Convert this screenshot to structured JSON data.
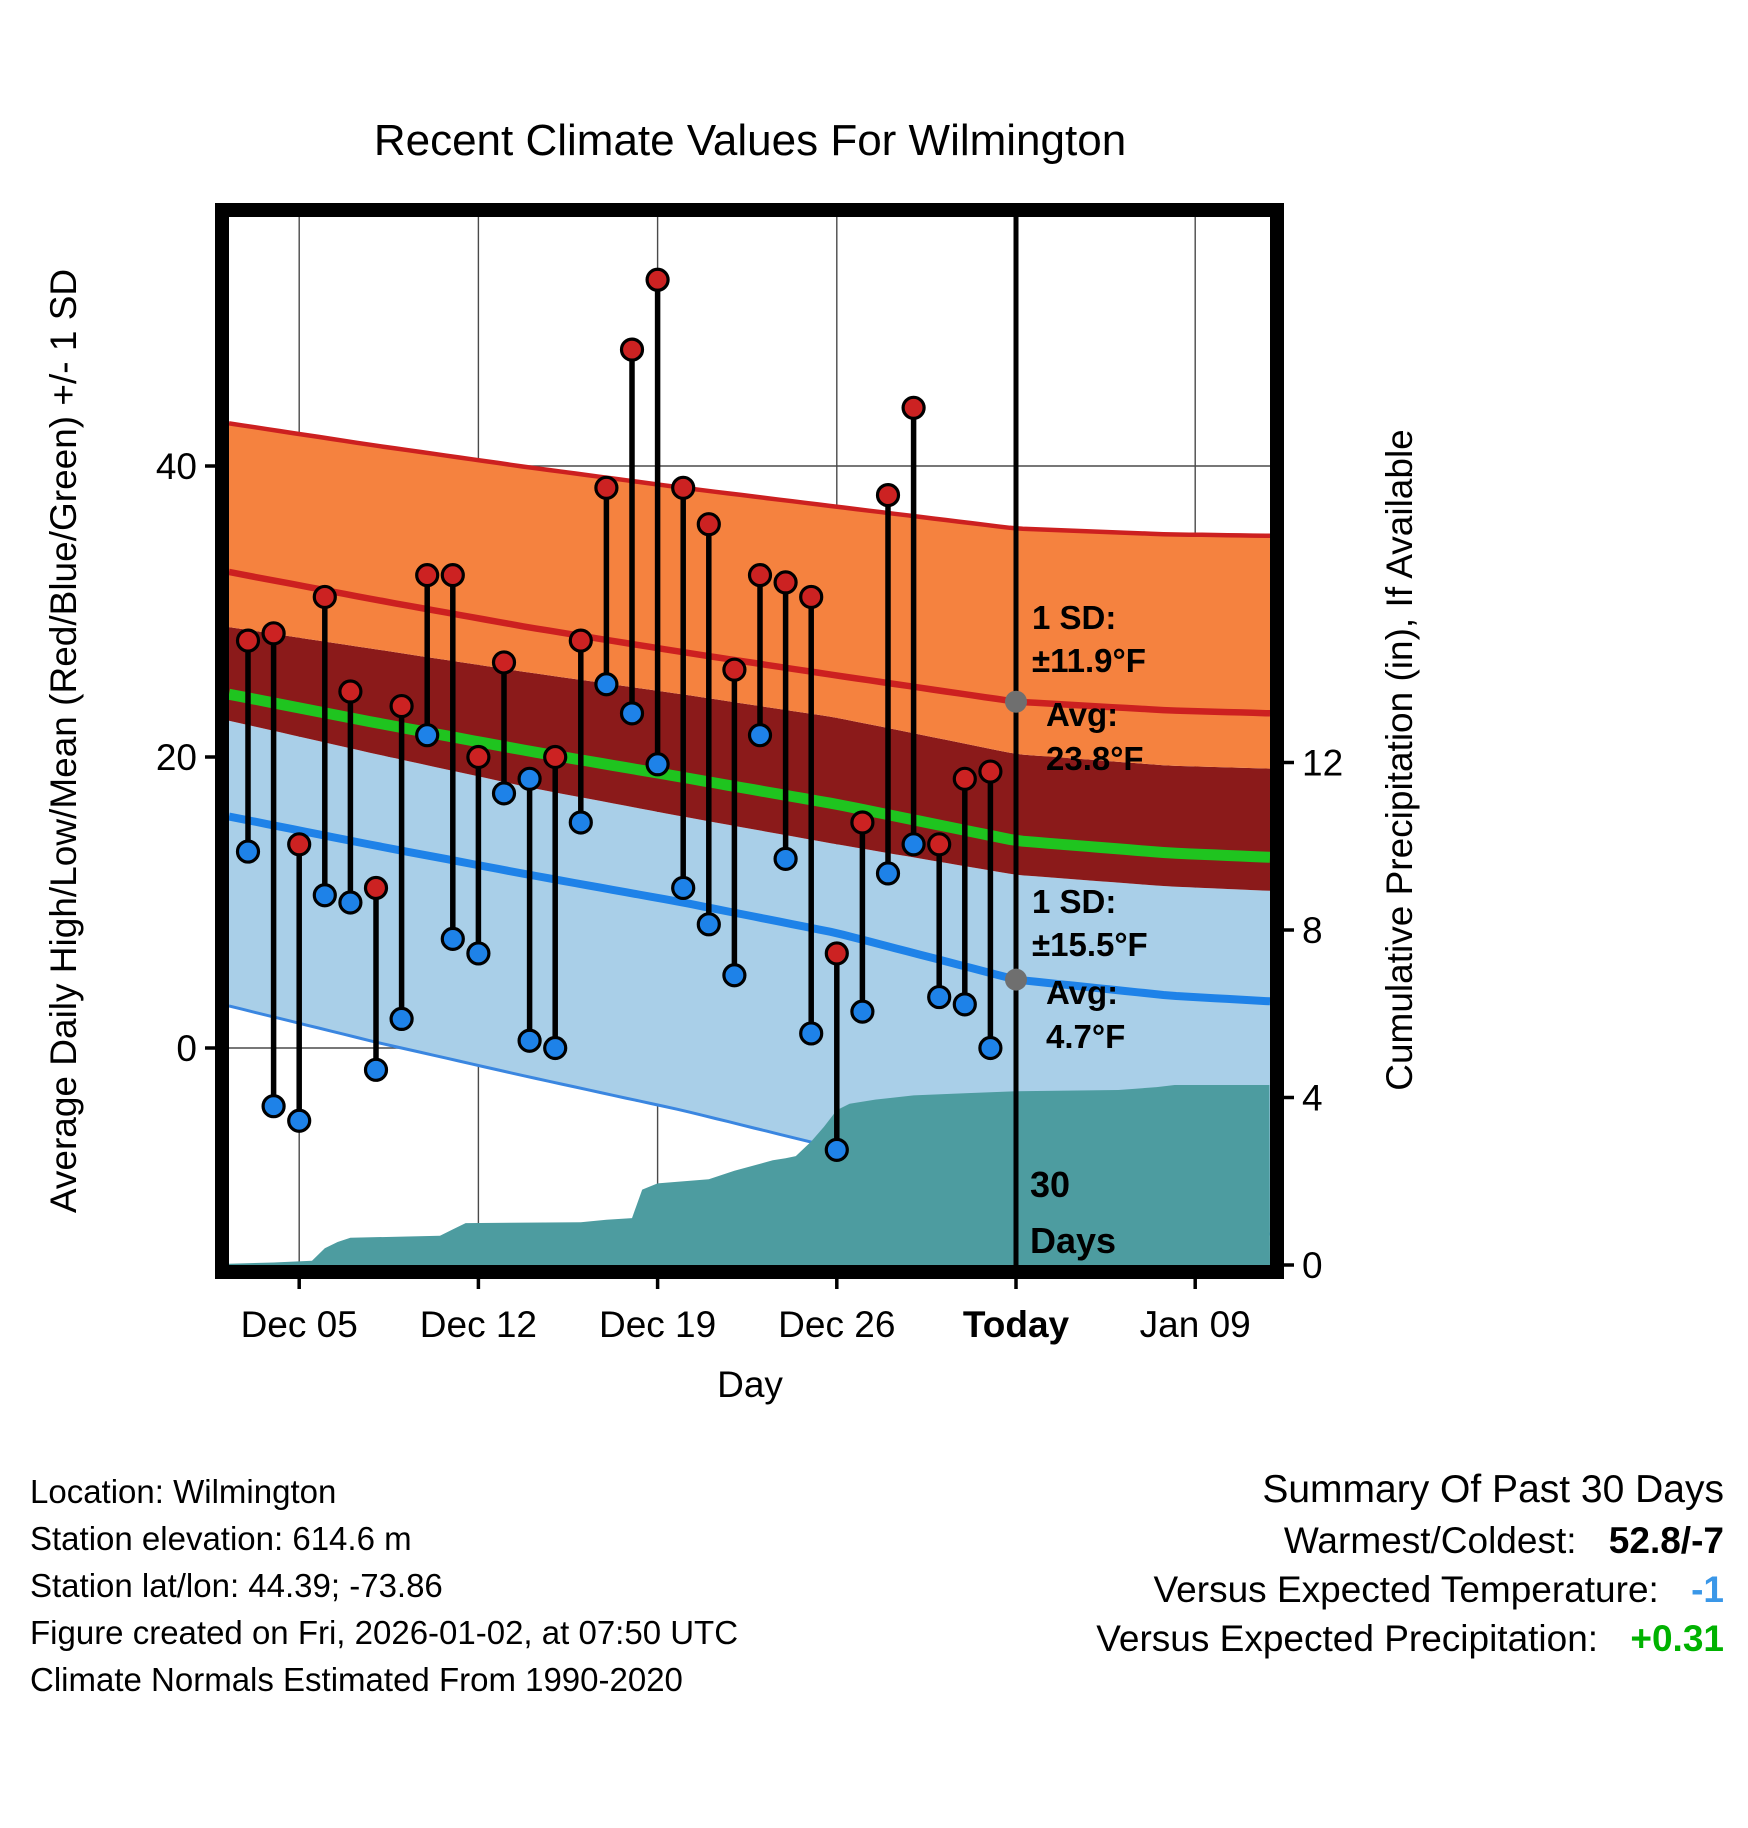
{
  "colors": {
    "orange_band": "#F5823F",
    "dark_red_band": "#8B1A1A",
    "light_blue_band": "#A9CFE8",
    "red_line": "#CC2020",
    "green_line": "#1FC41F",
    "blue_line": "#1E82E8",
    "light_blue_edge": "#3A86E0",
    "precip_fill": "#4D9CA0",
    "marker_red": "#CC2222",
    "marker_blue": "#1E82E8",
    "annotation_gray": "#7D7D7D",
    "gray_dot": "#6F6F6F",
    "grid": "#4A4A4A",
    "summary_temp_value": "#3A97E8",
    "summary_precip_value": "#00B200"
  },
  "chart_data": {
    "type": "line",
    "title": "Recent Climate Values For Wilmington",
    "x_axis": {
      "label": "Day",
      "ticks": [
        {
          "day": 2,
          "label": "Dec 05",
          "bold": false
        },
        {
          "day": 9,
          "label": "Dec 12",
          "bold": false
        },
        {
          "day": 16,
          "label": "Dec 19",
          "bold": false
        },
        {
          "day": 23,
          "label": "Dec 26",
          "bold": false
        },
        {
          "day": 30,
          "label": "Today",
          "bold": true
        },
        {
          "day": 37,
          "label": "Jan 09",
          "bold": false
        }
      ]
    },
    "y_left": {
      "label": "Average Daily High/Low/Mean (Red/Blue/Green) +/- 1 SD",
      "ticks": [
        0,
        20,
        40
      ],
      "range": [
        -14.9,
        57.1
      ]
    },
    "y_right": {
      "label": "Cumulative Precipitation (in), If Available",
      "ticks": [
        0,
        4,
        8,
        12
      ],
      "range": [
        0,
        25
      ]
    },
    "today_day": 30,
    "daily": {
      "dates": [
        "Dec 03",
        "Dec 04",
        "Dec 05",
        "Dec 06",
        "Dec 07",
        "Dec 08",
        "Dec 09",
        "Dec 10",
        "Dec 11",
        "Dec 12",
        "Dec 13",
        "Dec 14",
        "Dec 15",
        "Dec 16",
        "Dec 17",
        "Dec 18",
        "Dec 19",
        "Dec 20",
        "Dec 21",
        "Dec 22",
        "Dec 23",
        "Dec 24",
        "Dec 25",
        "Dec 26",
        "Dec 27",
        "Dec 28",
        "Dec 29",
        "Dec 30",
        "Dec 31",
        "Jan 01"
      ],
      "high": [
        28,
        28.5,
        14,
        31,
        24.5,
        11,
        23.5,
        32.5,
        32.5,
        20,
        26.5,
        18.5,
        20,
        28,
        38.5,
        48,
        52.8,
        38.5,
        36,
        26,
        32.5,
        32,
        31,
        6.5,
        15.5,
        38,
        44,
        14,
        18.5,
        19
      ],
      "low": [
        13.5,
        -4,
        -5,
        10.5,
        10,
        -1.5,
        2,
        21.5,
        7.5,
        6.5,
        17.5,
        0.5,
        0,
        15.5,
        25,
        23,
        19.5,
        11,
        8.5,
        5,
        21.5,
        13,
        1,
        -7,
        2.5,
        12,
        14,
        3.5,
        3,
        0
      ],
      "blue_high_days": [
        11
      ]
    },
    "normals": {
      "days": [
        -1,
        5,
        11,
        17,
        23,
        30,
        36,
        40
      ],
      "high_avg": [
        32.8,
        30.8,
        28.9,
        27.2,
        25.6,
        23.8,
        23.2,
        23.0
      ],
      "high_sd": [
        10.2,
        10.6,
        11.0,
        11.3,
        11.6,
        11.9,
        12.1,
        12.2
      ],
      "low_avg": [
        16.0,
        13.9,
        11.9,
        10.0,
        7.9,
        4.7,
        3.6,
        3.2
      ],
      "low_sd": [
        13.0,
        13.5,
        13.9,
        14.3,
        14.8,
        15.5,
        15.8,
        16.0
      ]
    },
    "precip_cumulative": {
      "days": [
        -0.75,
        1,
        2.5,
        3,
        3.5,
        4,
        7.5,
        8,
        8.5,
        13,
        14,
        15,
        15.4,
        16,
        18,
        19,
        20.5,
        21,
        21.4,
        22,
        22.5,
        23,
        23.5,
        24.5,
        26,
        28,
        30,
        34,
        35.5,
        36.2,
        39.9
      ],
      "inches": [
        0.03,
        0.06,
        0.1,
        0.4,
        0.55,
        0.65,
        0.7,
        0.85,
        1.0,
        1.02,
        1.08,
        1.12,
        1.8,
        1.95,
        2.05,
        2.25,
        2.5,
        2.55,
        2.6,
        2.95,
        3.3,
        3.7,
        3.85,
        3.95,
        4.05,
        4.1,
        4.15,
        4.18,
        4.25,
        4.3,
        4.3
      ]
    }
  },
  "annotations": {
    "high": {
      "sd_label": "1 SD:",
      "sd_value": "±11.9°F",
      "avg_label": "Avg:",
      "avg_value": "23.8°F",
      "avg": 23.8
    },
    "low": {
      "sd_label": "1 SD:",
      "sd_value": "±15.5°F",
      "avg_label": "Avg:",
      "avg_value": "4.7°F",
      "avg": 4.7
    },
    "today_label_line1": "30",
    "today_label_line2": "Days"
  },
  "footer": {
    "lines": [
      "Location: Wilmington",
      "Station elevation: 614.6 m",
      "Station lat/lon: 44.39; -73.86",
      "Figure created on Fri, 2026-01-02, at 07:50 UTC",
      "Climate Normals Estimated From 1990-2020"
    ]
  },
  "summary": {
    "title": "Summary Of Past 30 Days",
    "rows": [
      {
        "label": "Warmest/Coldest:",
        "value": "52.8/-7",
        "color": "#000000"
      },
      {
        "label": "Versus Expected Temperature:",
        "value": "-1",
        "color": "#3A97E8"
      },
      {
        "label": "Versus Expected Precipitation:",
        "value": "+0.31",
        "color": "#00B200"
      }
    ]
  }
}
